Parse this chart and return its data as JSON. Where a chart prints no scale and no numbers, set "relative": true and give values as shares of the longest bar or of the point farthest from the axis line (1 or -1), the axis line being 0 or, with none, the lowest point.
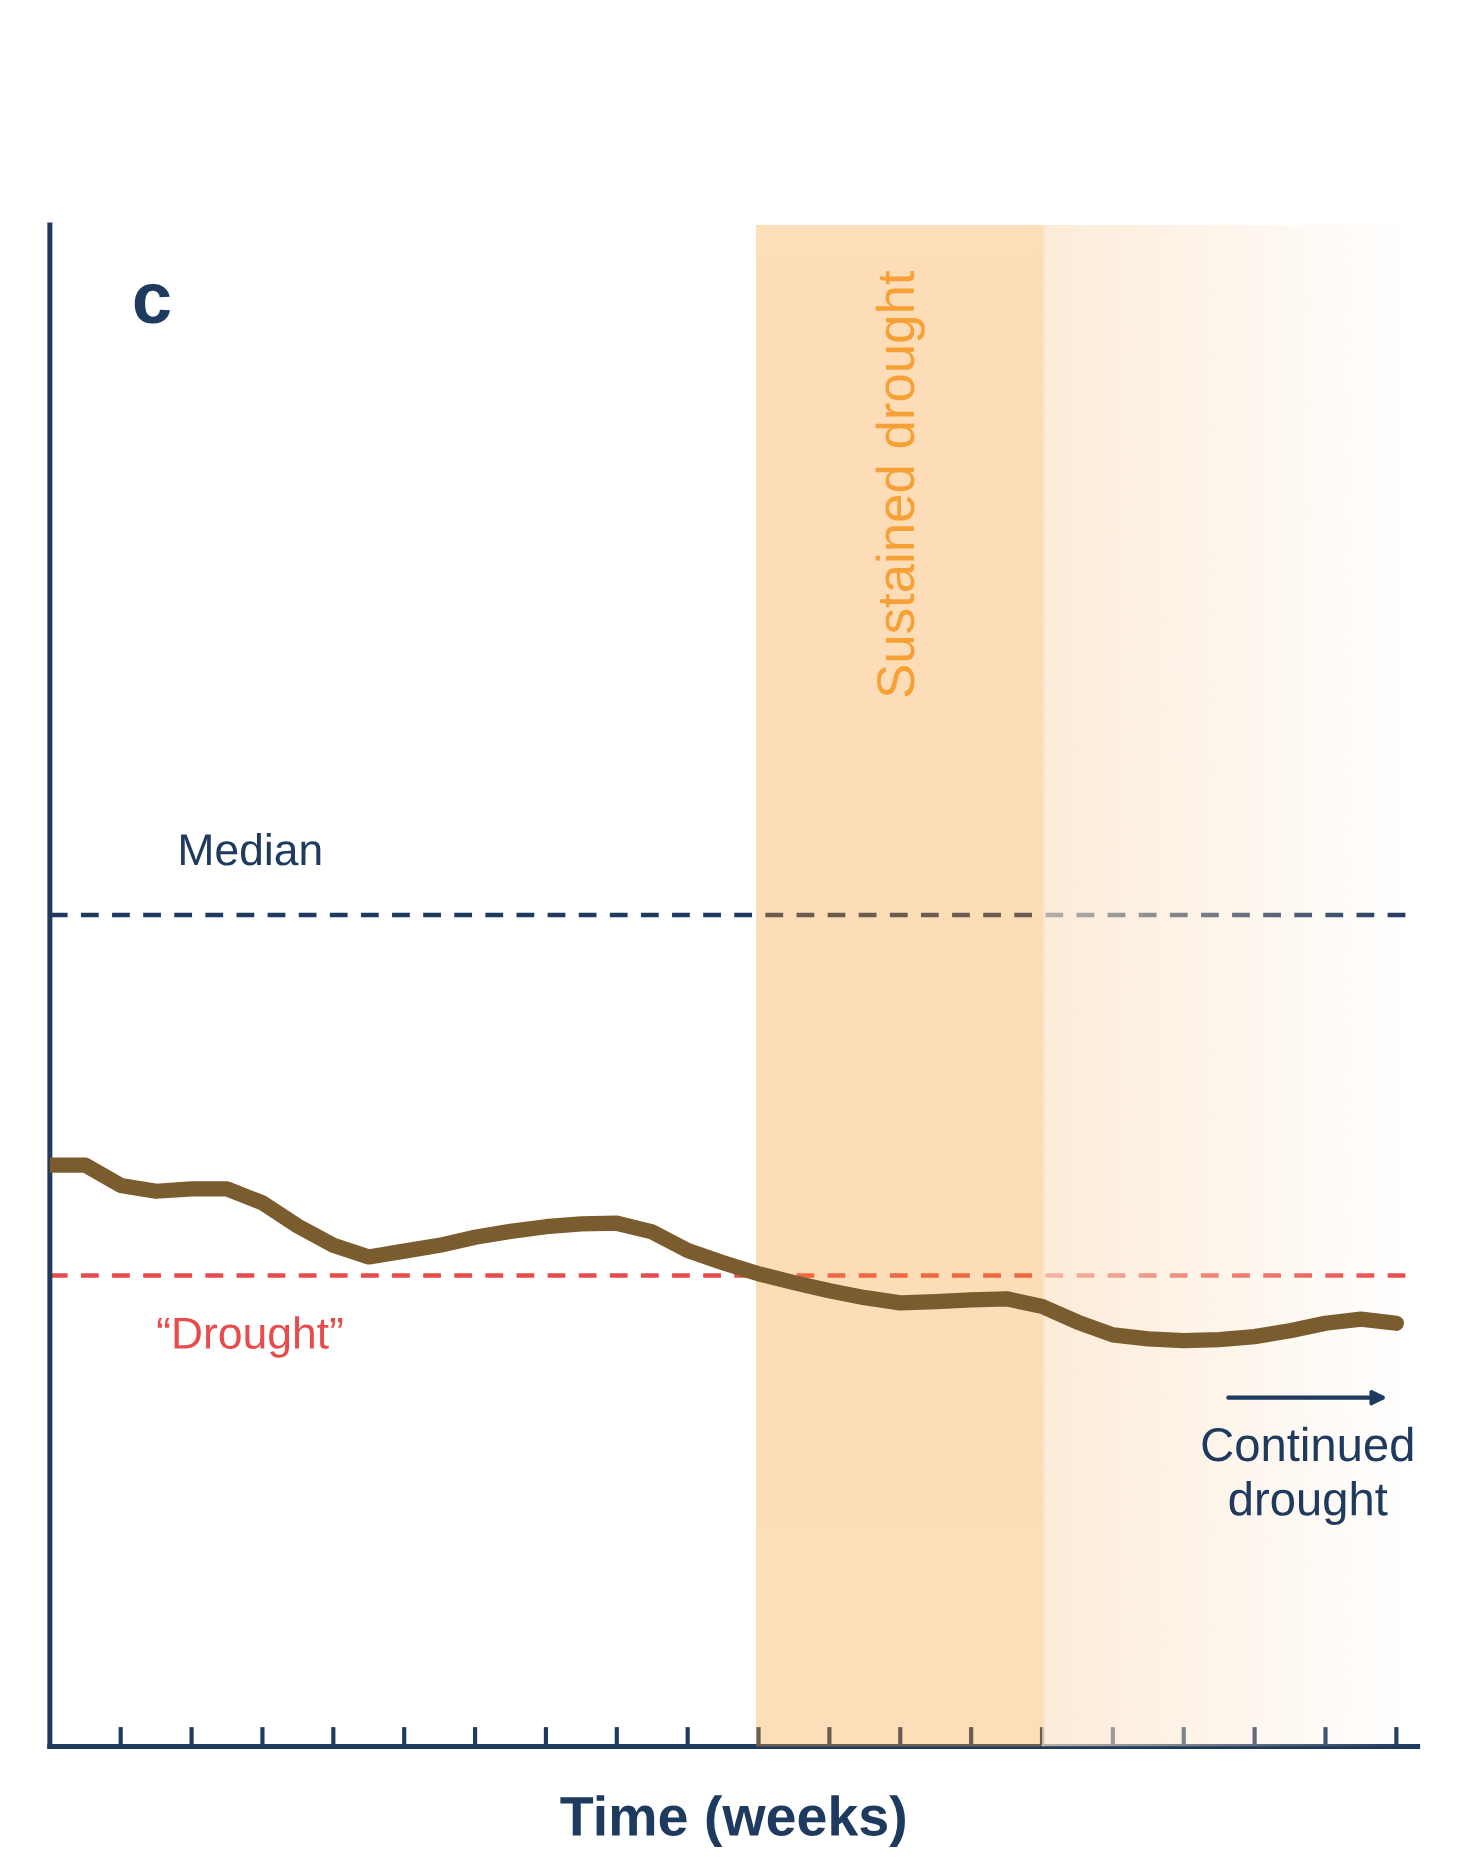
{
  "chart_data": {
    "type": "line",
    "relative": true,
    "xlabel": "Time (weeks)",
    "categories": [
      null,
      null,
      null,
      null,
      null,
      null,
      null,
      null,
      null,
      null,
      null,
      null,
      null,
      null,
      null,
      null,
      null,
      null,
      null,
      null,
      null,
      null,
      null,
      null,
      null,
      null,
      null,
      null,
      null,
      null,
      null,
      null,
      null,
      null,
      null,
      null,
      null,
      null,
      null
    ],
    "series": [
      {
        "color": "#7a5c2e",
        "values": [
          1.0,
          1.0,
          0.965,
          0.955,
          0.959,
          0.959,
          0.935,
          0.895,
          0.862,
          0.842,
          0.852,
          0.862,
          0.876,
          0.886,
          0.894,
          0.899,
          0.9,
          0.885,
          0.853,
          0.832,
          0.813,
          0.798,
          0.784,
          0.772,
          0.763,
          0.765,
          0.768,
          0.77,
          0.757,
          0.73,
          0.708,
          0.701,
          0.698,
          0.7,
          0.705,
          0.715,
          0.728,
          0.735,
          0.728
        ]
      }
    ],
    "ref_lines": [
      {
        "axis": "y",
        "value": 1.43,
        "label": "Median",
        "color": "#1f3a5f",
        "line_style": "dashed"
      },
      {
        "axis": "y",
        "value": 0.81,
        "label": "“Drought”",
        "color": "#e84b4b",
        "line_style": "dashed"
      }
    ],
    "annotations": [
      "c",
      "Sustained drought",
      "Continued drought"
    ],
    "grid": false,
    "legend": false,
    "marker": "none",
    "line_style": "solid"
  }
}
